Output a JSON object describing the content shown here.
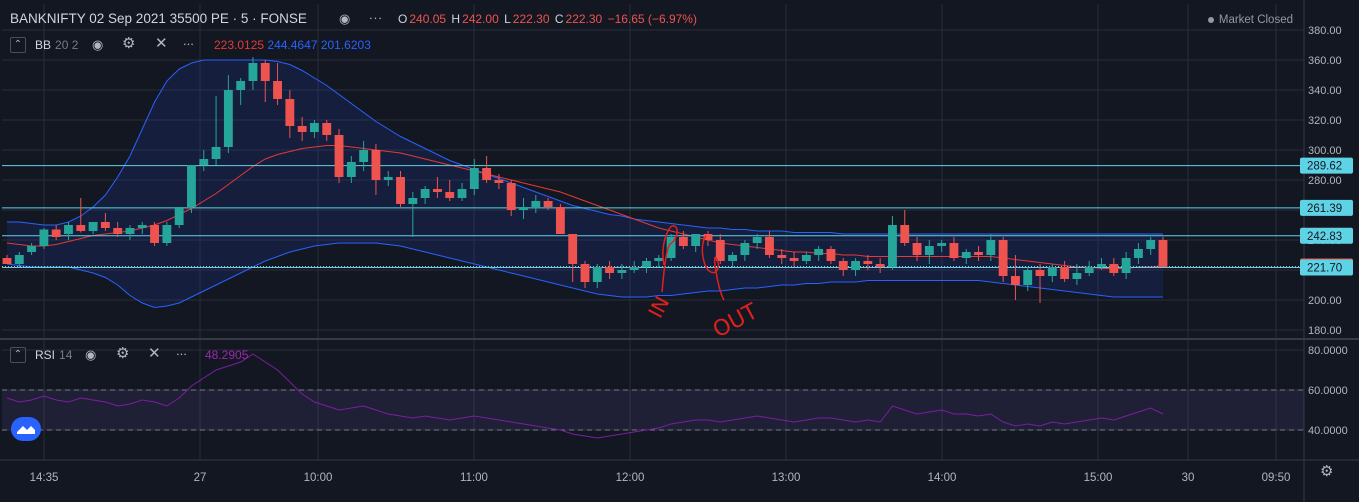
{
  "header": {
    "symbol": "BANKNIFTY 02 Sep 2021 35500 PE · 5 · FONSE",
    "open_label": "O",
    "open": "240.05",
    "high_label": "H",
    "high": "242.00",
    "low_label": "L",
    "low": "222.30",
    "close_label": "C",
    "close": "222.30",
    "change": "−16.65 (−6.97%)",
    "market_status": "Market Closed"
  },
  "indicators": {
    "bb": {
      "name": "BB",
      "params": "20 2",
      "v1": "223.0125",
      "v2": "244.4647",
      "v3": "201.6203"
    },
    "rsi": {
      "name": "RSI",
      "params": "14",
      "value": "48.2905"
    }
  },
  "colors": {
    "background": "#131722",
    "up": "#26a69a",
    "down": "#ef5350",
    "bb_basis": "#e53935",
    "bb_band": "#2962ff",
    "rsi": "#7b1fa2",
    "hline": "#5fd3e6",
    "grid": "#2a2e39"
  },
  "chart_data": [
    {
      "type": "candlestick",
      "title": "BANKNIFTY 02 Sep 2021 35500 PE · 5 · FONSE",
      "ylim": [
        175,
        390
      ],
      "y_ticks": [
        180,
        200,
        220,
        240,
        260,
        280,
        300,
        320,
        340,
        360,
        380
      ],
      "x_tick_labels": [
        "14:35",
        "27",
        "10:00",
        "11:00",
        "12:00",
        "13:00",
        "14:00",
        "15:00",
        "30",
        "09:50"
      ],
      "horizontal_lines": [
        289.62,
        261.39,
        242.83,
        221.7
      ],
      "price_labels": [
        {
          "value": 289.62,
          "text": "289.62",
          "kind": "line"
        },
        {
          "value": 261.39,
          "text": "261.39",
          "kind": "line"
        },
        {
          "value": 242.83,
          "text": "242.83",
          "kind": "line"
        },
        {
          "value": 222.3,
          "text": "222.30",
          "kind": "last"
        },
        {
          "value": 221.7,
          "text": "221.70",
          "kind": "line"
        }
      ],
      "annotations": [
        "IN",
        "OUT"
      ],
      "candles": [
        [
          228,
          230,
          224,
          224
        ],
        [
          224,
          232,
          222,
          230
        ],
        [
          232,
          238,
          230,
          236
        ],
        [
          236,
          248,
          234,
          247
        ],
        [
          247,
          250,
          240,
          242
        ],
        [
          244,
          252,
          240,
          250
        ],
        [
          250,
          268,
          245,
          246
        ],
        [
          246,
          252,
          244,
          252
        ],
        [
          252,
          258,
          246,
          248
        ],
        [
          248,
          252,
          242,
          244
        ],
        [
          244,
          250,
          240,
          248
        ],
        [
          248,
          252,
          244,
          250
        ],
        [
          250,
          252,
          236,
          238
        ],
        [
          238,
          252,
          236,
          250
        ],
        [
          250,
          262,
          248,
          262
        ],
        [
          262,
          290,
          258,
          290
        ],
        [
          290,
          300,
          286,
          294
        ],
        [
          294,
          336,
          290,
          302
        ],
        [
          302,
          350,
          298,
          340
        ],
        [
          340,
          348,
          330,
          346
        ],
        [
          346,
          362,
          340,
          358
        ],
        [
          358,
          360,
          332,
          346
        ],
        [
          346,
          358,
          330,
          334
        ],
        [
          334,
          340,
          308,
          316
        ],
        [
          316,
          322,
          306,
          312
        ],
        [
          312,
          320,
          308,
          318
        ],
        [
          318,
          320,
          306,
          310
        ],
        [
          310,
          314,
          278,
          282
        ],
        [
          282,
          296,
          278,
          292
        ],
        [
          292,
          306,
          286,
          300
        ],
        [
          300,
          304,
          270,
          280
        ],
        [
          280,
          286,
          276,
          282
        ],
        [
          282,
          286,
          262,
          264
        ],
        [
          264,
          272,
          242,
          268
        ],
        [
          268,
          276,
          264,
          274
        ],
        [
          274,
          282,
          268,
          272
        ],
        [
          272,
          280,
          266,
          268
        ],
        [
          268,
          278,
          266,
          274
        ],
        [
          274,
          294,
          270,
          288
        ],
        [
          288,
          296,
          278,
          280
        ],
        [
          280,
          284,
          274,
          278
        ],
        [
          278,
          280,
          256,
          260
        ],
        [
          260,
          268,
          254,
          262
        ],
        [
          262,
          270,
          258,
          266
        ],
        [
          266,
          268,
          260,
          262
        ],
        [
          262,
          264,
          244,
          244
        ],
        [
          244,
          244,
          212,
          224
        ],
        [
          224,
          226,
          208,
          212
        ],
        [
          212,
          224,
          208,
          222
        ],
        [
          222,
          226,
          214,
          218
        ],
        [
          218,
          224,
          214,
          220
        ],
        [
          220,
          226,
          218,
          222
        ],
        [
          222,
          228,
          218,
          226
        ],
        [
          226,
          230,
          222,
          228
        ],
        [
          228,
          244,
          226,
          242
        ],
        [
          242,
          246,
          234,
          236
        ],
        [
          236,
          244,
          232,
          244
        ],
        [
          244,
          246,
          236,
          240
        ],
        [
          240,
          244,
          224,
          226
        ],
        [
          226,
          232,
          222,
          230
        ],
        [
          230,
          240,
          226,
          238
        ],
        [
          238,
          244,
          234,
          242
        ],
        [
          242,
          246,
          228,
          230
        ],
        [
          230,
          234,
          224,
          228
        ],
        [
          228,
          232,
          222,
          226
        ],
        [
          226,
          232,
          224,
          230
        ],
        [
          230,
          236,
          226,
          234
        ],
        [
          234,
          236,
          224,
          226
        ],
        [
          226,
          228,
          216,
          220
        ],
        [
          220,
          228,
          216,
          226
        ],
        [
          226,
          230,
          220,
          224
        ],
        [
          224,
          228,
          218,
          222
        ],
        [
          222,
          256,
          220,
          250
        ],
        [
          250,
          260,
          236,
          238
        ],
        [
          238,
          242,
          226,
          230
        ],
        [
          230,
          240,
          224,
          236
        ],
        [
          236,
          240,
          232,
          238
        ],
        [
          238,
          242,
          226,
          228
        ],
        [
          228,
          234,
          224,
          232
        ],
        [
          232,
          236,
          226,
          230
        ],
        [
          230,
          244,
          226,
          240
        ],
        [
          240,
          242,
          212,
          216
        ],
        [
          216,
          230,
          200,
          210
        ],
        [
          210,
          222,
          206,
          220
        ],
        [
          220,
          224,
          198,
          216
        ],
        [
          216,
          224,
          212,
          222
        ],
        [
          222,
          226,
          212,
          214
        ],
        [
          214,
          224,
          210,
          218
        ],
        [
          218,
          226,
          216,
          222
        ],
        [
          222,
          228,
          220,
          224
        ],
        [
          224,
          228,
          216,
          218
        ],
        [
          218,
          232,
          214,
          228
        ],
        [
          228,
          238,
          224,
          234
        ],
        [
          234,
          242,
          230,
          240
        ],
        [
          240,
          242,
          222,
          222
        ]
      ],
      "bollinger": {
        "basis": [
          238,
          237,
          236,
          236,
          237,
          239,
          241,
          243,
          244,
          245,
          246,
          248,
          250,
          253,
          257,
          261,
          266,
          271,
          277,
          283,
          289,
          294,
          297,
          299,
          301,
          302,
          303,
          303,
          302,
          301,
          300,
          299,
          298,
          296,
          294,
          292,
          290,
          288,
          286,
          284,
          282,
          280,
          278,
          276,
          274,
          272,
          269,
          266,
          263,
          260,
          257,
          254,
          251,
          248,
          246,
          244,
          242,
          240,
          238,
          237,
          236,
          235,
          234,
          233,
          232,
          232,
          231,
          231,
          230,
          230,
          229,
          229,
          229,
          229,
          229,
          229,
          229,
          229,
          229,
          229,
          229,
          228,
          227,
          226,
          225,
          224,
          223,
          222,
          222,
          221,
          221,
          221,
          222,
          222,
          223
        ],
        "upper": [
          252,
          252,
          251,
          250,
          250,
          252,
          256,
          262,
          270,
          282,
          296,
          314,
          332,
          346,
          354,
          358,
          360,
          360,
          360,
          360,
          360,
          360,
          359,
          357,
          353,
          348,
          343,
          337,
          331,
          325,
          319,
          314,
          309,
          305,
          301,
          297,
          293,
          290,
          287,
          284,
          281,
          278,
          275,
          272,
          269,
          266,
          263,
          261,
          259,
          257,
          256,
          254,
          253,
          252,
          251,
          250,
          249,
          248,
          248,
          247,
          247,
          246,
          246,
          246,
          245,
          245,
          245,
          245,
          244,
          244,
          244,
          244,
          244,
          244,
          244,
          244,
          244,
          244,
          244,
          244,
          244,
          244,
          244,
          244,
          244,
          244,
          244,
          244,
          244,
          244,
          244,
          244,
          244,
          244,
          244
        ],
        "lower": [
          224,
          223,
          222,
          222,
          222,
          222,
          220,
          218,
          215,
          210,
          203,
          198,
          195,
          196,
          198,
          202,
          206,
          210,
          214,
          218,
          222,
          226,
          229,
          232,
          234,
          236,
          237,
          238,
          238,
          238,
          238,
          237,
          236,
          234,
          232,
          230,
          228,
          226,
          224,
          222,
          220,
          218,
          216,
          214,
          212,
          210,
          208,
          206,
          204,
          203,
          202,
          202,
          202,
          203,
          203,
          204,
          205,
          206,
          206,
          207,
          208,
          208,
          209,
          210,
          210,
          211,
          211,
          212,
          212,
          212,
          213,
          213,
          213,
          213,
          213,
          213,
          213,
          213,
          213,
          213,
          212,
          211,
          210,
          209,
          208,
          207,
          206,
          205,
          204,
          203,
          202,
          202,
          202,
          202,
          202
        ]
      }
    },
    {
      "type": "line",
      "title": "RSI 14",
      "ylim": [
        32,
        84
      ],
      "y_ticks": [
        40,
        60,
        80
      ],
      "band": [
        40,
        60
      ],
      "values": [
        56,
        54,
        55,
        57,
        55,
        54,
        56,
        55,
        54,
        52,
        53,
        55,
        54,
        52,
        56,
        62,
        66,
        70,
        72,
        74,
        78,
        74,
        70,
        64,
        58,
        54,
        52,
        50,
        51,
        52,
        50,
        48,
        47,
        46,
        47,
        46,
        45,
        46,
        47,
        46,
        45,
        44,
        43,
        42,
        41,
        40,
        38,
        37,
        36,
        37,
        38,
        39,
        40,
        41,
        43,
        44,
        45,
        45,
        44,
        45,
        46,
        47,
        46,
        45,
        44,
        45,
        46,
        46,
        45,
        44,
        45,
        44,
        52,
        50,
        48,
        49,
        50,
        48,
        48,
        47,
        48,
        44,
        42,
        43,
        42,
        44,
        43,
        44,
        45,
        46,
        45,
        47,
        49,
        51,
        48
      ]
    }
  ]
}
